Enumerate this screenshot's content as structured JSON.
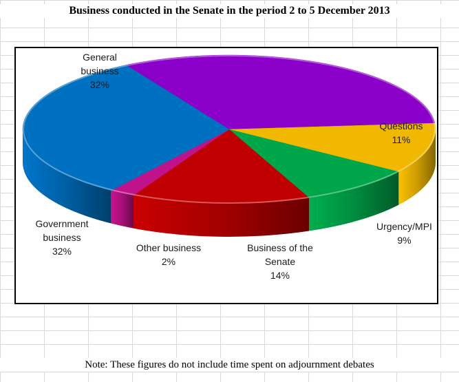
{
  "title": "Business conducted in the Senate in the period 2 to 5 December 2013",
  "note": "Note: These figures do not include  time spent on adjournment debates",
  "chart_data": {
    "type": "pie",
    "title": "Business conducted in the Senate in the period 2 to 5 December 2013",
    "labels": [
      {
        "name": "General\nbusiness",
        "value": "32%"
      },
      {
        "name": "Questions",
        "value": "11%"
      },
      {
        "name": "Urgency/MPI",
        "value": "9%"
      },
      {
        "name": "Business of the\nSenate",
        "value": "14%"
      },
      {
        "name": "Other business",
        "value": "2%"
      },
      {
        "name": "Government\nbusiness",
        "value": "32%"
      }
    ],
    "slices": [
      {
        "label": "General business",
        "value": 32,
        "color": "#8B00C9"
      },
      {
        "label": "Questions",
        "value": 11,
        "color": "#F0B800"
      },
      {
        "label": "Urgency/MPI",
        "value": 9,
        "color": "#00A64A"
      },
      {
        "label": "Business of the Senate",
        "value": 14,
        "color": "#C00000"
      },
      {
        "label": "Other business",
        "value": 2,
        "color": "#C0128A"
      },
      {
        "label": "Government business",
        "value": 32,
        "color": "#0070C0"
      }
    ]
  }
}
